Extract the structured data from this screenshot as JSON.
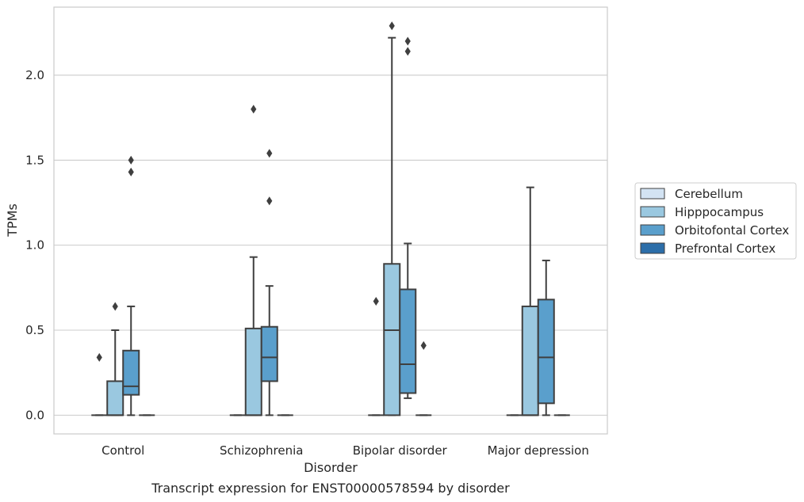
{
  "chart_data": {
    "type": "box",
    "xlabel": "Disorder",
    "ylabel": "TPMs",
    "caption": "Transcript expression for ENST00000578594 by disorder",
    "categories": [
      "Control",
      "Schizophrenia",
      "Bipolar disorder",
      "Major depression"
    ],
    "ylim": [
      -0.11,
      2.4
    ],
    "yticks": [
      "0.0",
      "0.5",
      "1.0",
      "1.5",
      "2.0"
    ],
    "ytick_values": [
      0.0,
      0.5,
      1.0,
      1.5,
      2.0
    ],
    "grid": "horizontal",
    "legend": {
      "placement": "right",
      "entries": [
        "Cerebellum",
        "Hipppocampus",
        "Orbitofontal Cortex",
        "Prefrontal Cortex"
      ]
    },
    "series": [
      {
        "name": "Cerebellum",
        "color": "#d3e3f3",
        "boxes": [
          {
            "q1": 0,
            "median": 0,
            "q3": 0,
            "whislo": 0,
            "whishi": 0,
            "fliers": [
              0.34
            ]
          },
          {
            "q1": 0,
            "median": 0,
            "q3": 0,
            "whislo": 0,
            "whishi": 0,
            "fliers": []
          },
          {
            "q1": 0,
            "median": 0,
            "q3": 0,
            "whislo": 0,
            "whishi": 0,
            "fliers": [
              0.67
            ]
          },
          {
            "q1": 0,
            "median": 0,
            "q3": 0,
            "whislo": 0,
            "whishi": 0,
            "fliers": []
          }
        ]
      },
      {
        "name": "Hipppocampus",
        "color": "#9ac8e0",
        "boxes": [
          {
            "q1": 0,
            "median": 0,
            "q3": 0.2,
            "whislo": 0,
            "whishi": 0.5,
            "fliers": [
              0.64
            ]
          },
          {
            "q1": 0,
            "median": 0,
            "q3": 0.51,
            "whislo": 0,
            "whishi": 0.93,
            "fliers": [
              1.8
            ]
          },
          {
            "q1": 0,
            "median": 0.5,
            "q3": 0.89,
            "whislo": 0,
            "whishi": 2.22,
            "fliers": [
              2.29
            ]
          },
          {
            "q1": 0,
            "median": 0,
            "q3": 0.64,
            "whislo": 0,
            "whishi": 1.34,
            "fliers": []
          }
        ]
      },
      {
        "name": "Orbitofontal Cortex",
        "color": "#5a9fcc",
        "boxes": [
          {
            "q1": 0.12,
            "median": 0.17,
            "q3": 0.38,
            "whislo": 0,
            "whishi": 0.64,
            "fliers": [
              1.43,
              1.5
            ]
          },
          {
            "q1": 0.2,
            "median": 0.34,
            "q3": 0.52,
            "whislo": 0,
            "whishi": 0.76,
            "fliers": [
              1.26,
              1.54
            ]
          },
          {
            "q1": 0.13,
            "median": 0.3,
            "q3": 0.74,
            "whislo": 0.1,
            "whishi": 1.01,
            "fliers": [
              2.14,
              2.2
            ]
          },
          {
            "q1": 0.07,
            "median": 0.34,
            "q3": 0.68,
            "whislo": 0,
            "whishi": 0.91,
            "fliers": []
          }
        ]
      },
      {
        "name": "Prefrontal Cortex",
        "color": "#2c6ea9",
        "boxes": [
          {
            "q1": 0,
            "median": 0,
            "q3": 0,
            "whislo": 0,
            "whishi": 0,
            "fliers": []
          },
          {
            "q1": 0,
            "median": 0,
            "q3": 0,
            "whislo": 0,
            "whishi": 0,
            "fliers": []
          },
          {
            "q1": 0,
            "median": 0,
            "q3": 0,
            "whislo": 0,
            "whishi": 0,
            "fliers": [
              0.41
            ]
          },
          {
            "q1": 0,
            "median": 0,
            "q3": 0,
            "whislo": 0,
            "whishi": 0,
            "fliers": []
          }
        ]
      }
    ]
  }
}
